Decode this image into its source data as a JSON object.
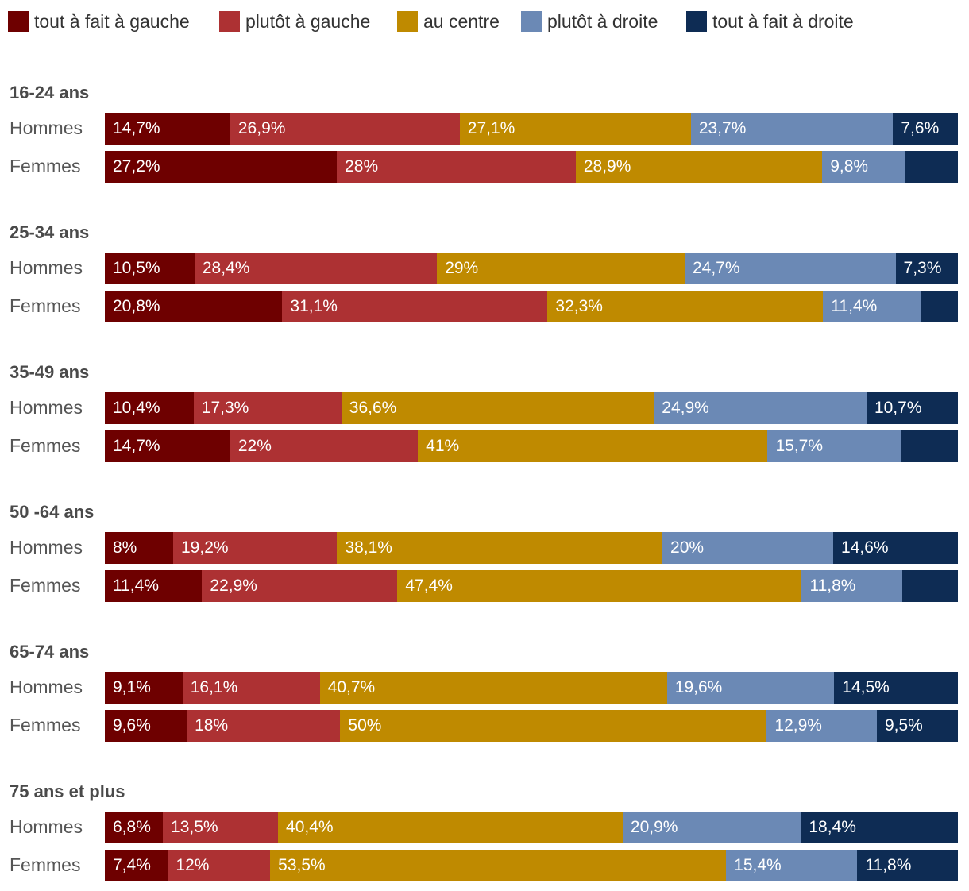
{
  "chart_data": {
    "type": "bar",
    "orientation": "horizontal-stacked-100",
    "title": "",
    "legend": [
      "tout à fait à gauche",
      "plutôt à gauche",
      "au centre",
      "plutôt à droite",
      "tout à fait à droite"
    ],
    "colors": [
      "#6e0000",
      "#ad3133",
      "#bf8a00",
      "#6b89b5",
      "#0e2c54"
    ],
    "legend_position": "top",
    "groups": [
      {
        "label": "16-24 ans",
        "rows": [
          {
            "label": "Hommes",
            "values": [
              14.7,
              26.9,
              27.1,
              23.7,
              7.6
            ],
            "labels": [
              "14,7%",
              "26,9%",
              "27,1%",
              "23,7%",
              "7,6%"
            ]
          },
          {
            "label": "Femmes",
            "values": [
              27.2,
              28,
              28.9,
              9.8,
              6.1
            ],
            "labels": [
              "27,2%",
              "28%",
              "28,9%",
              "9,8%",
              ""
            ]
          }
        ]
      },
      {
        "label": "25-34 ans",
        "rows": [
          {
            "label": "Hommes",
            "values": [
              10.5,
              28.4,
              29,
              24.7,
              7.3
            ],
            "labels": [
              "10,5%",
              "28,4%",
              "29%",
              "24,7%",
              "7,3%"
            ]
          },
          {
            "label": "Femmes",
            "values": [
              20.8,
              31.1,
              32.3,
              11.4,
              4.4
            ],
            "labels": [
              "20,8%",
              "31,1%",
              "32,3%",
              "11,4%",
              ""
            ]
          }
        ]
      },
      {
        "label": "35-49 ans",
        "rows": [
          {
            "label": "Hommes",
            "values": [
              10.4,
              17.3,
              36.6,
              24.9,
              10.7
            ],
            "labels": [
              "10,4%",
              "17,3%",
              "36,6%",
              "24,9%",
              "10,7%"
            ]
          },
          {
            "label": "Femmes",
            "values": [
              14.7,
              22,
              41,
              15.7,
              6.6
            ],
            "labels": [
              "14,7%",
              "22%",
              "41%",
              "15,7%",
              ""
            ]
          }
        ]
      },
      {
        "label": "50 -64 ans",
        "rows": [
          {
            "label": "Hommes",
            "values": [
              8,
              19.2,
              38.1,
              20,
              14.6
            ],
            "labels": [
              "8%",
              "19,2%",
              "38,1%",
              "20%",
              "14,6%"
            ]
          },
          {
            "label": "Femmes",
            "values": [
              11.4,
              22.9,
              47.4,
              11.8,
              6.5
            ],
            "labels": [
              "11,4%",
              "22,9%",
              "47,4%",
              "11,8%",
              ""
            ]
          }
        ]
      },
      {
        "label": "65-74 ans",
        "rows": [
          {
            "label": "Hommes",
            "values": [
              9.1,
              16.1,
              40.7,
              19.6,
              14.5
            ],
            "labels": [
              "9,1%",
              "16,1%",
              "40,7%",
              "19,6%",
              "14,5%"
            ]
          },
          {
            "label": "Femmes",
            "values": [
              9.6,
              18,
              50,
              12.9,
              9.5
            ],
            "labels": [
              "9,6%",
              "18%",
              "50%",
              "12,9%",
              "9,5%"
            ]
          }
        ]
      },
      {
        "label": "75 ans et plus",
        "rows": [
          {
            "label": "Hommes",
            "values": [
              6.8,
              13.5,
              40.4,
              20.9,
              18.4
            ],
            "labels": [
              "6,8%",
              "13,5%",
              "40,4%",
              "20,9%",
              "18,4%"
            ]
          },
          {
            "label": "Femmes",
            "values": [
              7.4,
              12,
              53.5,
              15.4,
              11.8
            ],
            "labels": [
              "7,4%",
              "12%",
              "53,5%",
              "15,4%",
              "11,8%"
            ]
          }
        ]
      }
    ]
  }
}
